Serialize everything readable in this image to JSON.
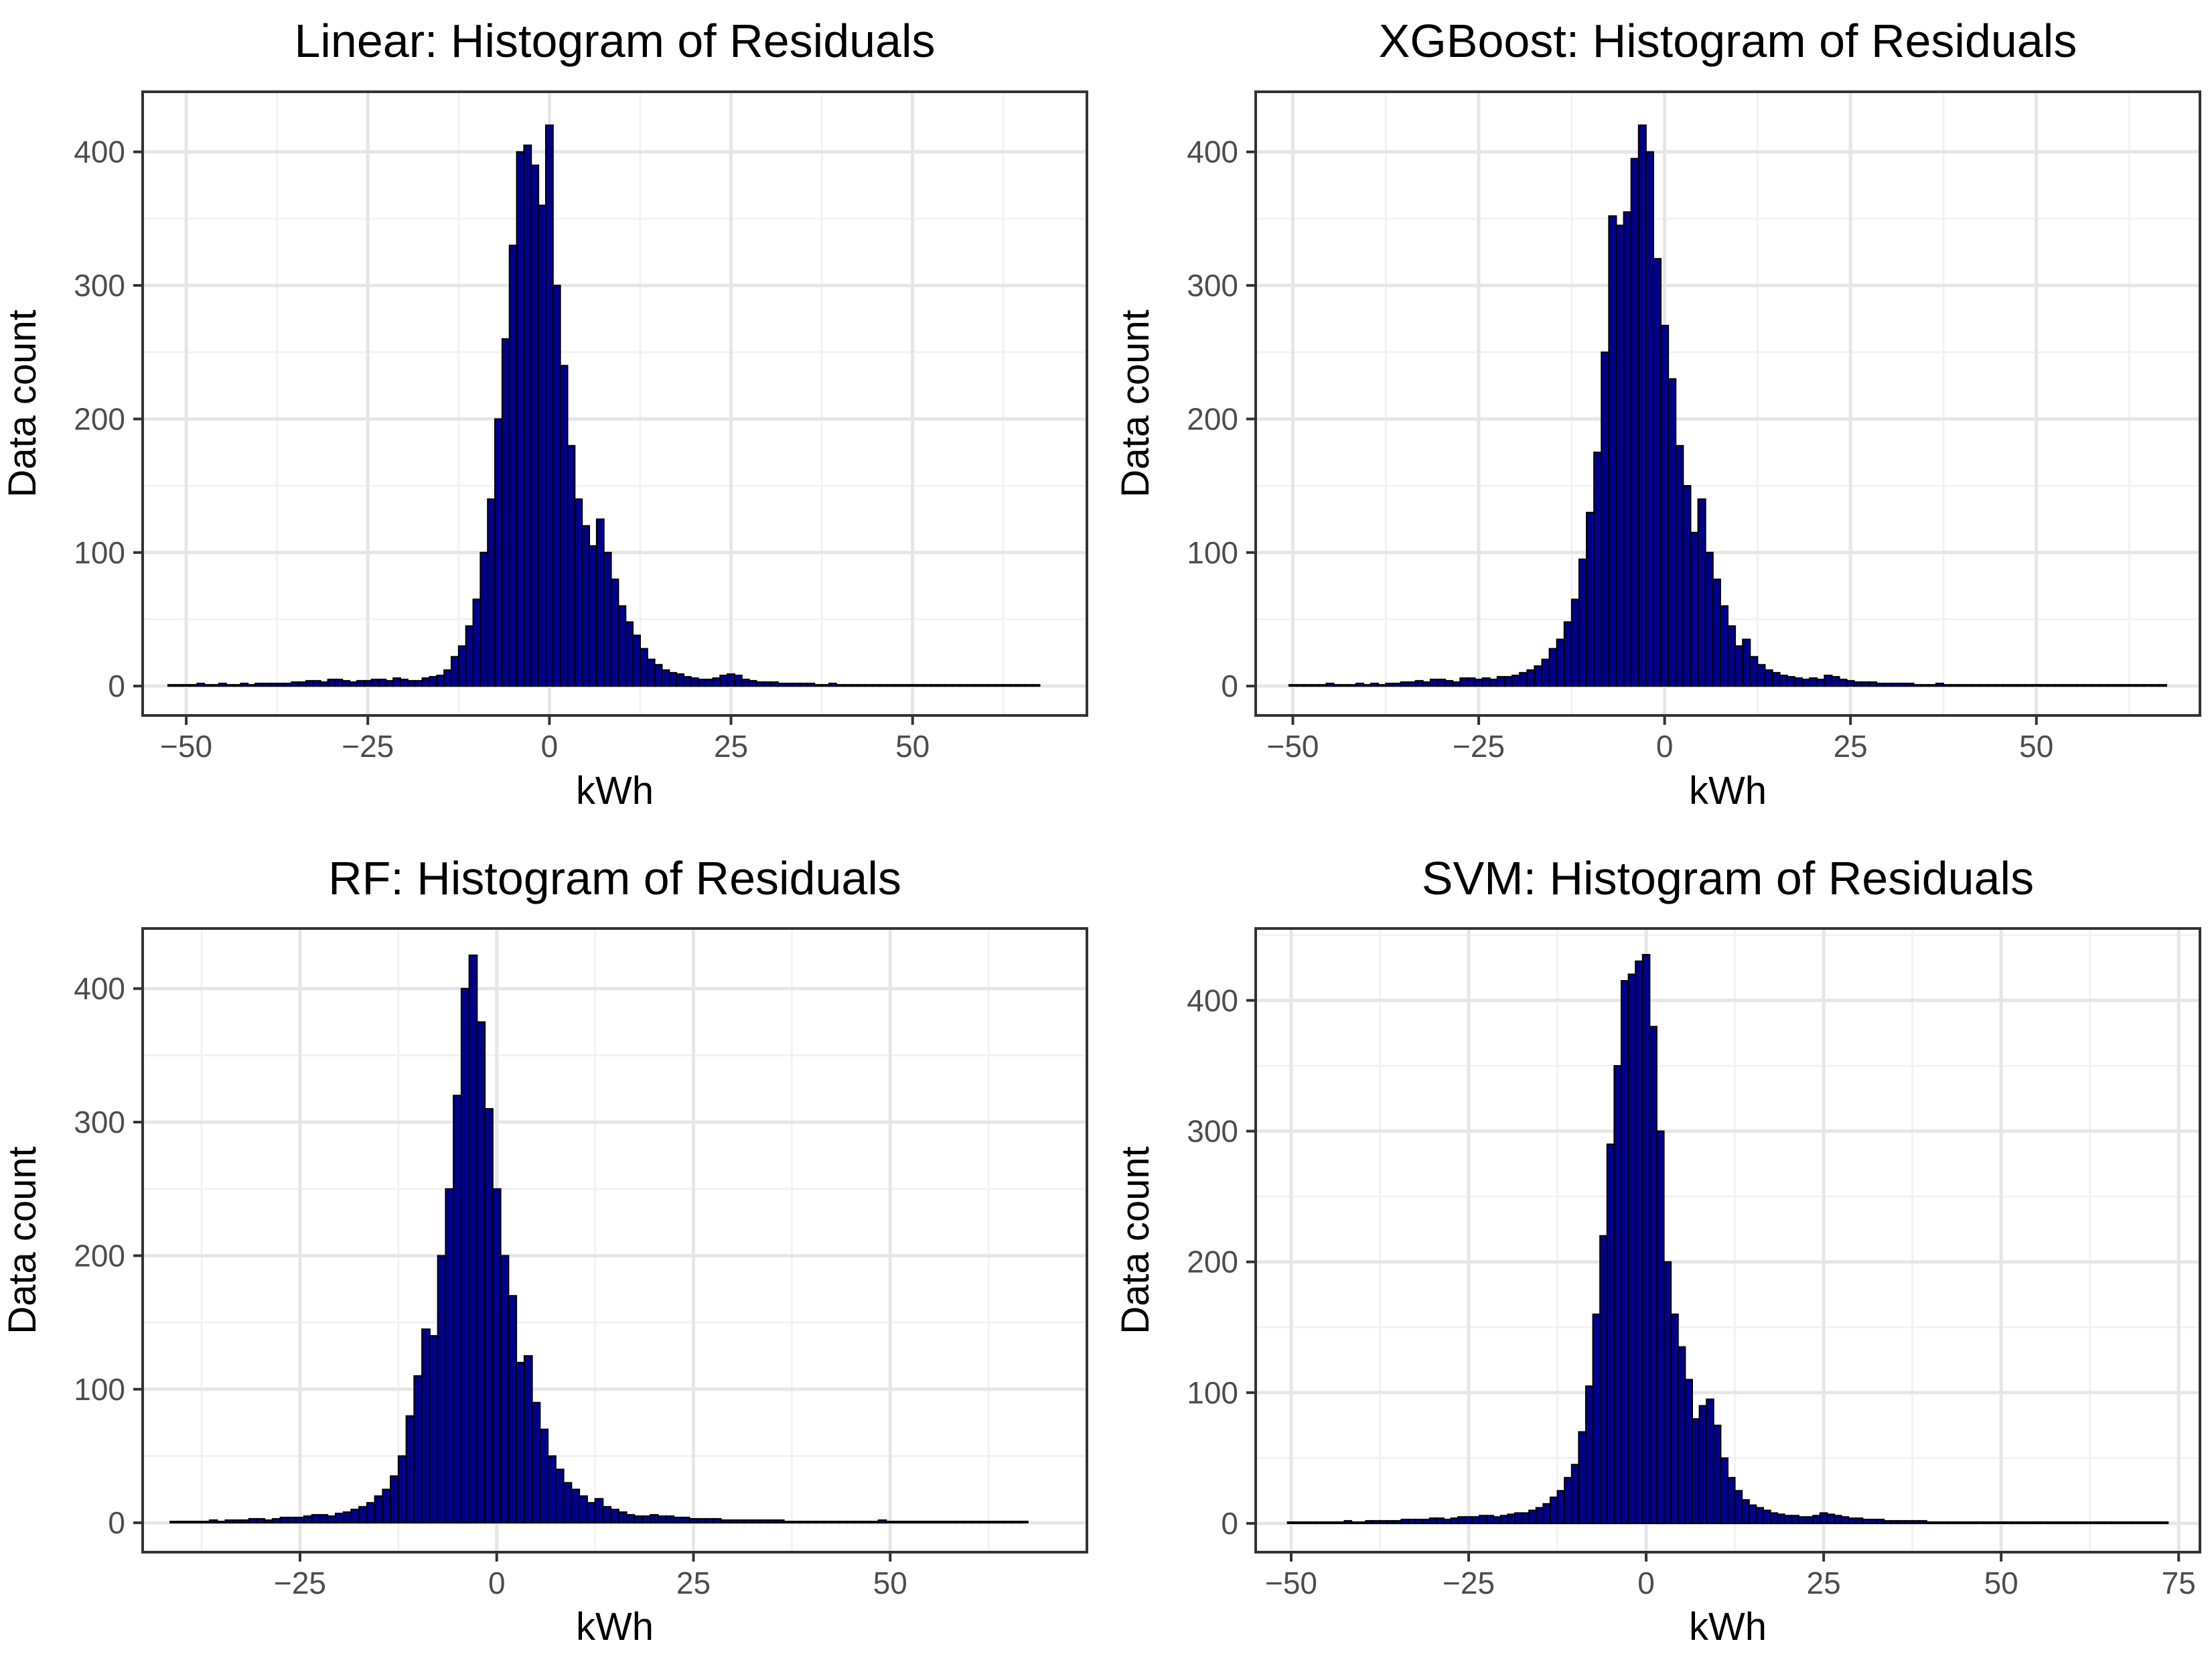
{
  "colors": {
    "bar_fill": "#00008b",
    "bar_stroke": "#000000",
    "panel_border": "#333333",
    "grid_major": "#e6e6e6",
    "grid_minor": "#f2f2f2",
    "tick_text": "#4d4d4d"
  },
  "chart_data": [
    {
      "type": "bar",
      "title": "Linear: Histogram of Residuals",
      "xlabel": "kWh",
      "ylabel": "Data count",
      "xlim": [
        -56,
        74
      ],
      "ylim": [
        -22,
        445
      ],
      "xticks": [
        -50,
        -25,
        0,
        25,
        50
      ],
      "xtick_labels": [
        "−50",
        "−25",
        "0",
        "25",
        "50"
      ],
      "yticks": [
        0,
        100,
        200,
        300,
        400
      ],
      "ytick_labels": [
        "0",
        "100",
        "200",
        "300",
        "400"
      ],
      "grid": true,
      "bin_width": 1,
      "x": [
        -52,
        -51,
        -50,
        -49,
        -48,
        -47,
        -46,
        -45,
        -44,
        -43,
        -42,
        -41,
        -40,
        -39,
        -38,
        -37,
        -36,
        -35,
        -34,
        -33,
        -32,
        -31,
        -30,
        -29,
        -28,
        -27,
        -26,
        -25,
        -24,
        -23,
        -22,
        -21,
        -20,
        -19,
        -18,
        -17,
        -16,
        -15,
        -14,
        -13,
        -12,
        -11,
        -10,
        -9,
        -8,
        -7,
        -6,
        -5,
        -4,
        -3,
        -2,
        -1,
        0,
        1,
        2,
        3,
        4,
        5,
        6,
        7,
        8,
        9,
        10,
        11,
        12,
        13,
        14,
        15,
        16,
        17,
        18,
        19,
        20,
        21,
        22,
        23,
        24,
        25,
        26,
        27,
        28,
        29,
        30,
        31,
        32,
        33,
        34,
        35,
        36,
        37,
        38,
        39,
        40,
        41,
        42,
        43,
        44,
        45,
        46,
        47,
        48,
        49,
        50,
        51,
        52,
        53,
        54,
        55,
        56,
        57,
        58,
        59,
        60,
        61,
        62,
        63,
        64,
        65,
        66,
        67
      ],
      "values": [
        1,
        1,
        1,
        1,
        2,
        1,
        1,
        2,
        1,
        1,
        2,
        1,
        2,
        2,
        2,
        2,
        2,
        3,
        3,
        4,
        4,
        3,
        5,
        5,
        4,
        3,
        4,
        4,
        5,
        5,
        4,
        6,
        5,
        4,
        4,
        6,
        7,
        8,
        12,
        22,
        30,
        45,
        65,
        100,
        140,
        200,
        260,
        330,
        400,
        405,
        390,
        360,
        420,
        300,
        240,
        180,
        140,
        120,
        105,
        125,
        100,
        80,
        60,
        48,
        38,
        28,
        20,
        16,
        12,
        10,
        9,
        7,
        6,
        5,
        5,
        6,
        8,
        9,
        8,
        5,
        4,
        3,
        3,
        3,
        2,
        2,
        2,
        2,
        2,
        1,
        1,
        2,
        1,
        1,
        1,
        1,
        1,
        1,
        1,
        1,
        1,
        1,
        1,
        1,
        1,
        1,
        1,
        1,
        1,
        1,
        1,
        1,
        1,
        1,
        1,
        1,
        1,
        1,
        1,
        1
      ]
    },
    {
      "type": "bar",
      "title": "XGBoost: Histogram of Residuals",
      "xlabel": "kWh",
      "ylabel": "Data count",
      "xlim": [
        -55,
        72
      ],
      "ylim": [
        -22,
        445
      ],
      "xticks": [
        -50,
        -25,
        0,
        25,
        50
      ],
      "xtick_labels": [
        "−50",
        "−25",
        "0",
        "25",
        "50"
      ],
      "yticks": [
        0,
        100,
        200,
        300,
        400
      ],
      "ytick_labels": [
        "0",
        "100",
        "200",
        "300",
        "400"
      ],
      "grid": true,
      "bin_width": 1,
      "x": [
        -50,
        -49,
        -48,
        -47,
        -46,
        -45,
        -44,
        -43,
        -42,
        -41,
        -40,
        -39,
        -38,
        -37,
        -36,
        -35,
        -34,
        -33,
        -32,
        -31,
        -30,
        -29,
        -28,
        -27,
        -26,
        -25,
        -24,
        -23,
        -22,
        -21,
        -20,
        -19,
        -18,
        -17,
        -16,
        -15,
        -14,
        -13,
        -12,
        -11,
        -10,
        -9,
        -8,
        -7,
        -6,
        -5,
        -4,
        -3,
        -2,
        -1,
        0,
        1,
        2,
        3,
        4,
        5,
        6,
        7,
        8,
        9,
        10,
        11,
        12,
        13,
        14,
        15,
        16,
        17,
        18,
        19,
        20,
        21,
        22,
        23,
        24,
        25,
        26,
        27,
        28,
        29,
        30,
        31,
        32,
        33,
        34,
        35,
        36,
        37,
        38,
        39,
        40,
        41,
        42,
        43,
        44,
        45,
        46,
        47,
        48,
        49,
        50,
        51,
        52,
        53,
        54,
        55,
        56,
        57,
        58,
        59,
        60,
        61,
        62,
        63,
        64,
        65,
        66,
        67
      ],
      "values": [
        1,
        1,
        1,
        1,
        1,
        2,
        1,
        1,
        1,
        2,
        1,
        2,
        1,
        2,
        2,
        3,
        3,
        4,
        3,
        5,
        5,
        4,
        3,
        6,
        6,
        5,
        6,
        5,
        7,
        7,
        8,
        10,
        12,
        15,
        20,
        28,
        35,
        48,
        65,
        95,
        130,
        175,
        250,
        352,
        345,
        355,
        395,
        420,
        400,
        320,
        270,
        230,
        180,
        150,
        115,
        140,
        100,
        80,
        60,
        45,
        30,
        35,
        22,
        16,
        12,
        10,
        8,
        7,
        6,
        5,
        6,
        5,
        8,
        7,
        5,
        4,
        3,
        3,
        3,
        2,
        2,
        2,
        2,
        2,
        1,
        1,
        1,
        2,
        1,
        1,
        1,
        1,
        1,
        1,
        1,
        1,
        1,
        1,
        1,
        1,
        1,
        1,
        1,
        1,
        1,
        1,
        1,
        1,
        1,
        1,
        1,
        1,
        1,
        1,
        1,
        1,
        1,
        1
      ]
    },
    {
      "type": "bar",
      "title": "RF: Histogram of Residuals",
      "xlabel": "kWh",
      "ylabel": "Data count",
      "xlim": [
        -45,
        75
      ],
      "ylim": [
        -22,
        445
      ],
      "xticks": [
        -25,
        0,
        25,
        50
      ],
      "xtick_labels": [
        "−25",
        "0",
        "25",
        "50"
      ],
      "yticks": [
        0,
        100,
        200,
        300,
        400
      ],
      "ytick_labels": [
        "0",
        "100",
        "200",
        "300",
        "400"
      ],
      "grid": true,
      "bin_width": 1,
      "x": [
        -41,
        -40,
        -39,
        -38,
        -37,
        -36,
        -35,
        -34,
        -33,
        -32,
        -31,
        -30,
        -29,
        -28,
        -27,
        -26,
        -25,
        -24,
        -23,
        -22,
        -21,
        -20,
        -19,
        -18,
        -17,
        -16,
        -15,
        -14,
        -13,
        -12,
        -11,
        -10,
        -9,
        -8,
        -7,
        -6,
        -5,
        -4,
        -3,
        -2,
        -1,
        0,
        1,
        2,
        3,
        4,
        5,
        6,
        7,
        8,
        9,
        10,
        11,
        12,
        13,
        14,
        15,
        16,
        17,
        18,
        19,
        20,
        21,
        22,
        23,
        24,
        25,
        26,
        27,
        28,
        29,
        30,
        31,
        32,
        33,
        34,
        35,
        36,
        37,
        38,
        39,
        40,
        41,
        42,
        43,
        44,
        45,
        46,
        47,
        48,
        49,
        50,
        51,
        52,
        53,
        54,
        55,
        56,
        57,
        58,
        59,
        60,
        61,
        62,
        63,
        64,
        65,
        66,
        67
      ],
      "values": [
        1,
        1,
        1,
        1,
        1,
        2,
        1,
        2,
        2,
        2,
        3,
        3,
        2,
        3,
        4,
        4,
        4,
        5,
        6,
        6,
        5,
        7,
        8,
        10,
        12,
        15,
        20,
        25,
        35,
        50,
        80,
        110,
        145,
        140,
        200,
        250,
        320,
        400,
        425,
        375,
        310,
        250,
        200,
        170,
        120,
        125,
        90,
        70,
        50,
        40,
        30,
        25,
        20,
        15,
        18,
        12,
        10,
        8,
        6,
        5,
        5,
        6,
        5,
        5,
        4,
        4,
        3,
        3,
        3,
        3,
        2,
        2,
        2,
        2,
        2,
        2,
        2,
        2,
        1,
        1,
        1,
        1,
        1,
        1,
        1,
        1,
        1,
        1,
        1,
        1,
        2,
        1,
        1,
        1,
        1,
        1,
        1,
        1,
        1,
        1,
        1,
        1,
        1,
        1,
        1,
        1,
        1,
        1,
        1
      ]
    },
    {
      "type": "bar",
      "title": "SVM: Histogram of Residuals",
      "xlabel": "kWh",
      "ylabel": "Data count",
      "xlim": [
        -55,
        78
      ],
      "ylim": [
        -22,
        455
      ],
      "xticks": [
        -50,
        -25,
        0,
        25,
        50,
        75
      ],
      "xtick_labels": [
        "−50",
        "−25",
        "0",
        "25",
        "50",
        "75"
      ],
      "yticks": [
        0,
        100,
        200,
        300,
        400
      ],
      "ytick_labels": [
        "0",
        "100",
        "200",
        "300",
        "400"
      ],
      "grid": true,
      "bin_width": 1,
      "x": [
        -50,
        -49,
        -48,
        -47,
        -46,
        -45,
        -44,
        -43,
        -42,
        -41,
        -40,
        -39,
        -38,
        -37,
        -36,
        -35,
        -34,
        -33,
        -32,
        -31,
        -30,
        -29,
        -28,
        -27,
        -26,
        -25,
        -24,
        -23,
        -22,
        -21,
        -20,
        -19,
        -18,
        -17,
        -16,
        -15,
        -14,
        -13,
        -12,
        -11,
        -10,
        -9,
        -8,
        -7,
        -6,
        -5,
        -4,
        -3,
        -2,
        -1,
        0,
        1,
        2,
        3,
        4,
        5,
        6,
        7,
        8,
        9,
        10,
        11,
        12,
        13,
        14,
        15,
        16,
        17,
        18,
        19,
        20,
        21,
        22,
        23,
        24,
        25,
        26,
        27,
        28,
        29,
        30,
        31,
        32,
        33,
        34,
        35,
        36,
        37,
        38,
        39,
        40,
        41,
        42,
        43,
        44,
        45,
        46,
        47,
        48,
        49,
        50,
        51,
        52,
        53,
        54,
        55,
        56,
        57,
        58,
        59,
        60,
        61,
        62,
        63,
        64,
        65,
        66,
        67,
        68,
        69,
        70,
        71,
        72,
        73
      ],
      "values": [
        1,
        1,
        1,
        1,
        1,
        1,
        1,
        1,
        2,
        1,
        1,
        2,
        2,
        2,
        2,
        2,
        3,
        3,
        3,
        3,
        4,
        4,
        3,
        4,
        5,
        5,
        5,
        6,
        6,
        5,
        6,
        7,
        8,
        8,
        10,
        12,
        15,
        20,
        25,
        35,
        45,
        70,
        105,
        160,
        220,
        290,
        350,
        415,
        420,
        430,
        435,
        380,
        300,
        200,
        160,
        135,
        110,
        80,
        90,
        95,
        75,
        50,
        35,
        25,
        18,
        14,
        12,
        10,
        8,
        7,
        6,
        6,
        5,
        5,
        6,
        8,
        7,
        6,
        5,
        4,
        4,
        3,
        3,
        3,
        2,
        2,
        2,
        2,
        2,
        2,
        1,
        1,
        1,
        1,
        1,
        1,
        1,
        1,
        1,
        1,
        1,
        1,
        1,
        1,
        1,
        1,
        1,
        1,
        1,
        1,
        1,
        1,
        1,
        1,
        1,
        1,
        1,
        1,
        1,
        1,
        1,
        1,
        1,
        1
      ]
    }
  ]
}
